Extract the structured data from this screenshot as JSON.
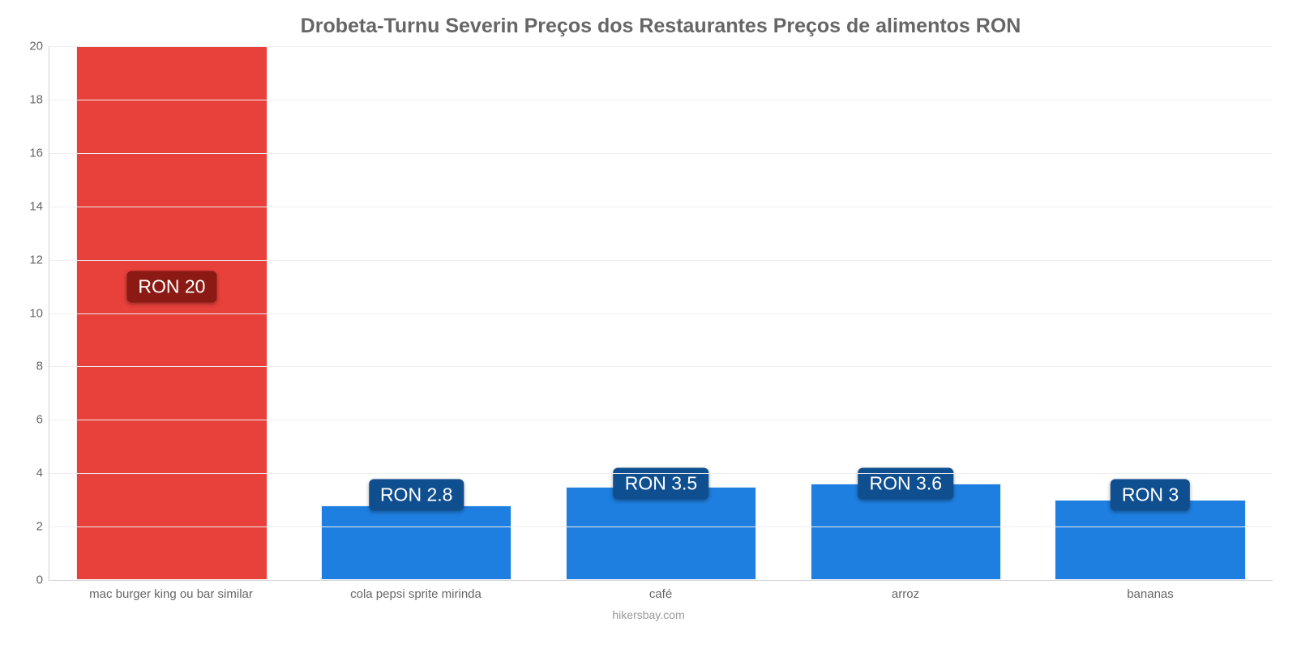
{
  "chart": {
    "type": "bar",
    "title": "Drobeta-Turnu Severin Preços dos Restaurantes Preços de alimentos RON",
    "title_fontsize": 25,
    "title_color": "#666666",
    "categories": [
      "mac burger king ou bar similar",
      "cola pepsi sprite mirinda",
      "café",
      "arroz",
      "bananas"
    ],
    "values": [
      20,
      2.8,
      3.5,
      3.6,
      3
    ],
    "value_labels": [
      "RON 20",
      "RON 2.8",
      "RON 3.5",
      "RON 3.6",
      "RON 3"
    ],
    "bar_colors": [
      "#e8403a",
      "#1e7fe0",
      "#1e7fe0",
      "#1e7fe0",
      "#1e7fe0"
    ],
    "label_badge_colors": [
      "#8b1a14",
      "#0f4f8f",
      "#0f4f8f",
      "#0f4f8f",
      "#0f4f8f"
    ],
    "label_positions_pct": [
      55,
      16,
      18,
      18,
      16
    ],
    "ylim": [
      0,
      20
    ],
    "yticks": [
      0,
      2,
      4,
      6,
      8,
      10,
      12,
      14,
      16,
      18,
      20
    ],
    "bar_width_pct": 78,
    "background_color": "#ffffff",
    "grid_color": "#eeeeee",
    "axis_color": "#d0d0d0",
    "tick_color": "#666666",
    "tick_fontsize": 15,
    "label_fontsize": 23,
    "source_text": "hikersbay.com",
    "source_color": "#999999"
  }
}
